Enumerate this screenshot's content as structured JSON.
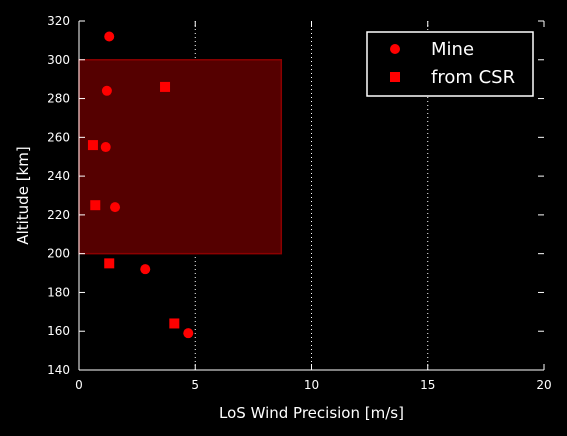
{
  "chart_data": {
    "type": "scatter",
    "xlabel": "LoS Wind Precision [m/s]",
    "ylabel": "Altitude [km]",
    "xlim": [
      0,
      20
    ],
    "ylim": [
      140,
      320
    ],
    "x_ticks": [
      "0",
      "5",
      "10",
      "15",
      "20"
    ],
    "y_ticks": [
      "140",
      "160",
      "180",
      "200",
      "220",
      "240",
      "260",
      "280",
      "300",
      "320"
    ],
    "vertical_dotted_grid_at_x": [
      5,
      10,
      15
    ],
    "shaded_region": {
      "x": [
        0,
        8.7
      ],
      "y": [
        200,
        300
      ],
      "color": "#550000",
      "edge": "#8b0000"
    },
    "legend_position": "top-right",
    "series": [
      {
        "name": "Mine",
        "marker": "circle",
        "color": "#ff0000",
        "points": [
          [
            1.3,
            312
          ],
          [
            1.2,
            284
          ],
          [
            1.15,
            255
          ],
          [
            1.55,
            224
          ],
          [
            2.85,
            192
          ],
          [
            4.7,
            159
          ]
        ]
      },
      {
        "name": "from CSR",
        "marker": "square",
        "color": "#ff0000",
        "points": [
          [
            3.7,
            286
          ],
          [
            0.6,
            256
          ],
          [
            0.7,
            225
          ],
          [
            1.3,
            195
          ],
          [
            4.1,
            164
          ]
        ]
      }
    ]
  }
}
